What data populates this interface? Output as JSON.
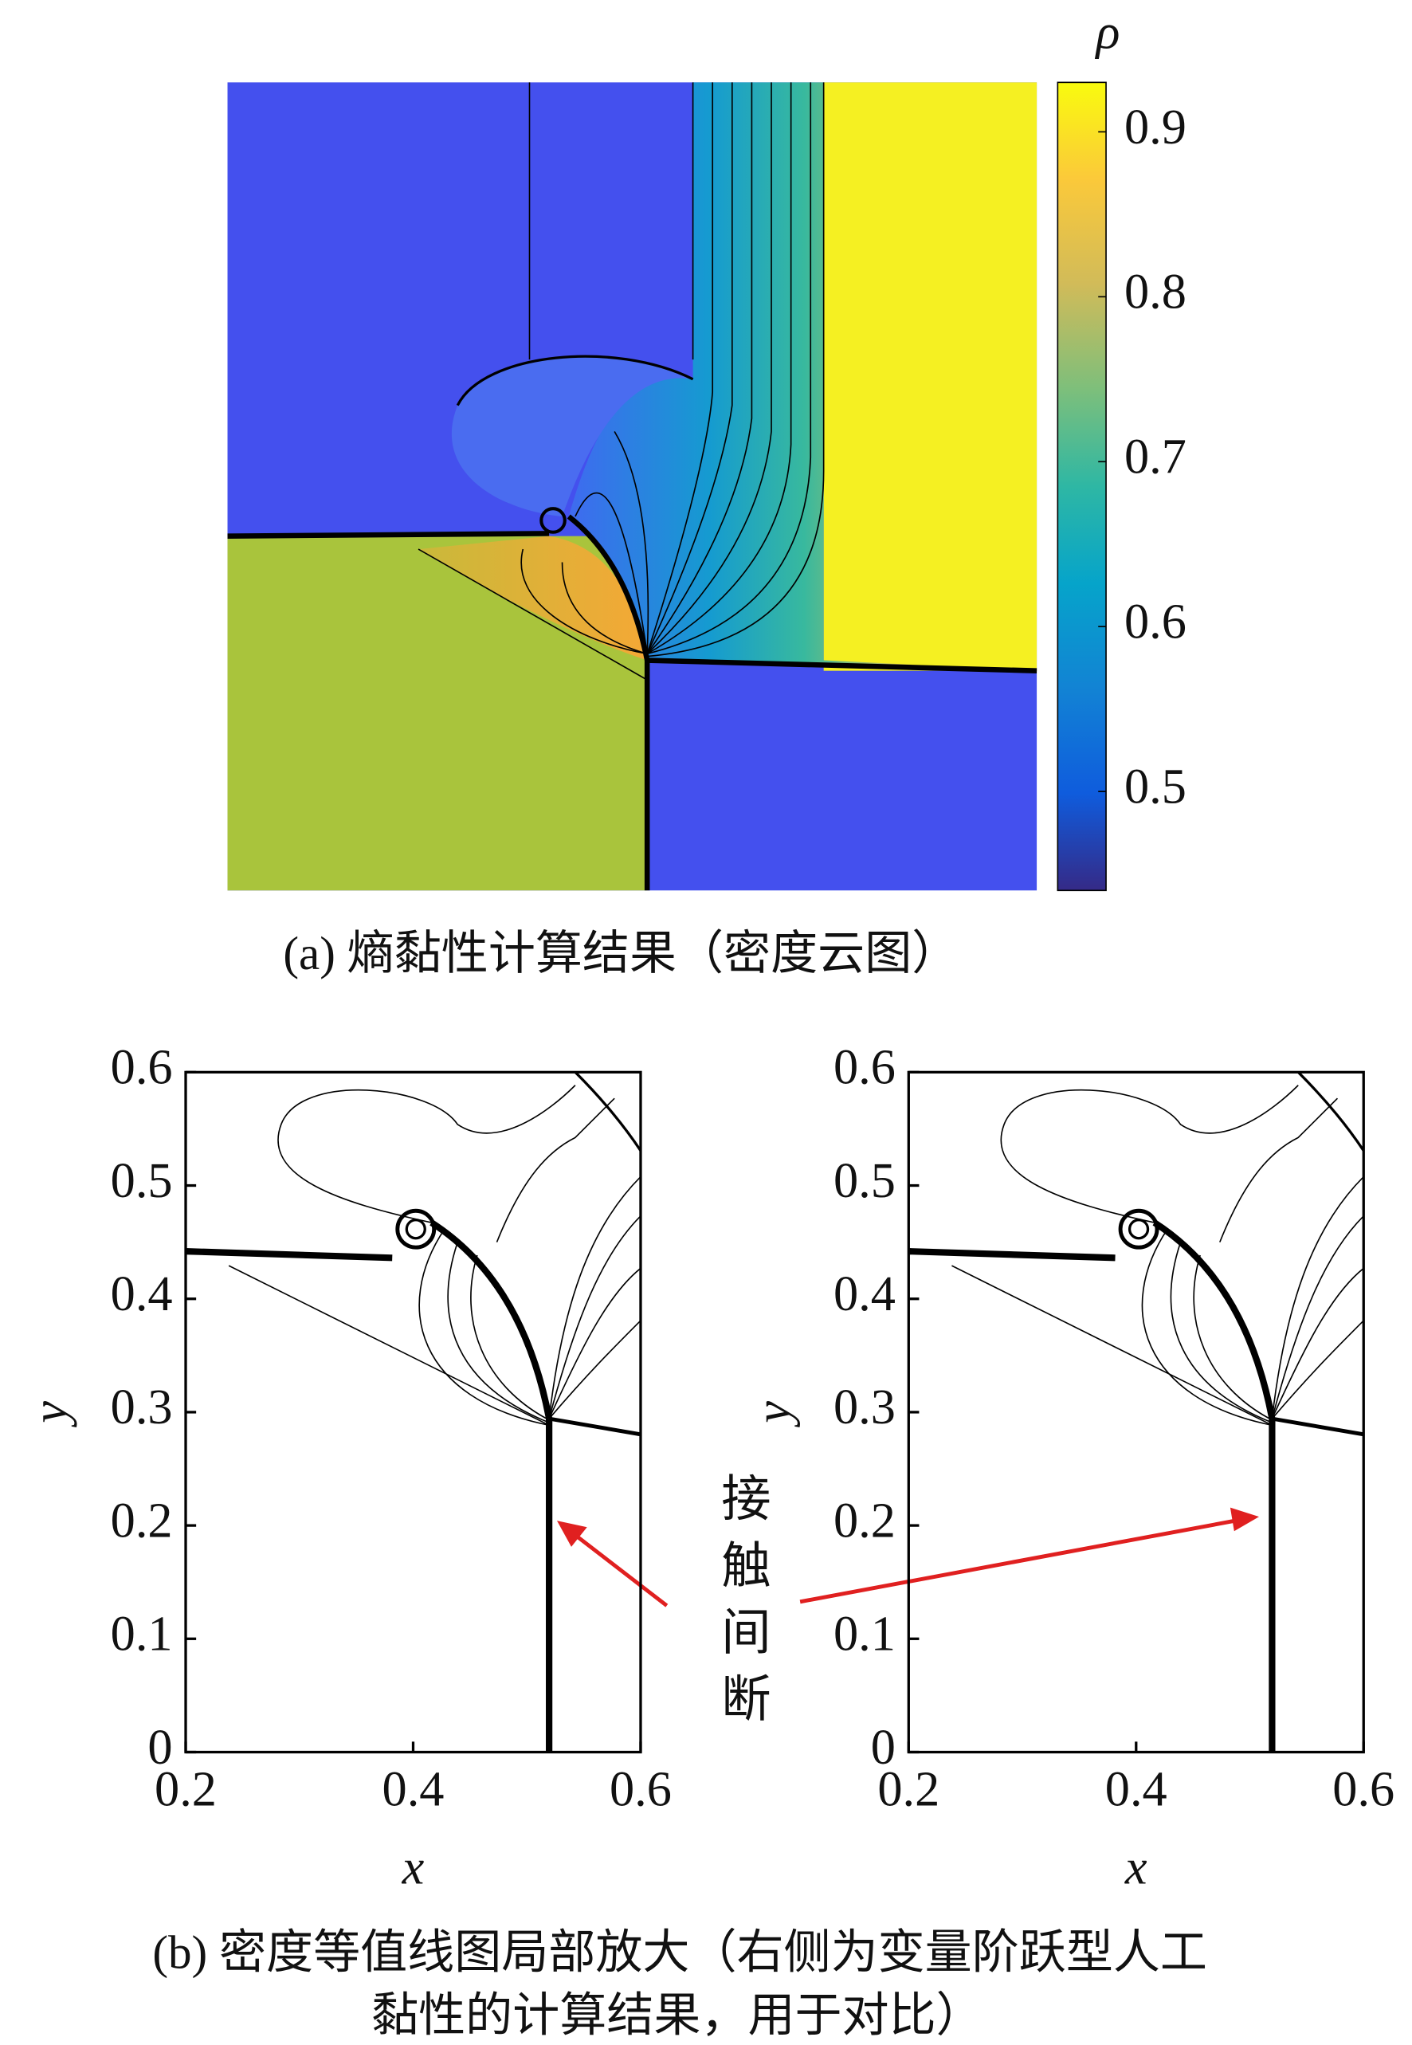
{
  "chart_data": [
    {
      "type": "contour",
      "colorbar": {
        "label": "ρ",
        "lim": [
          0.44,
          0.93
        ],
        "ticks": [
          0.5,
          0.6,
          0.7,
          0.8,
          0.9
        ]
      }
    },
    {
      "type": "contour-lines",
      "xlabel": "x",
      "ylabel": "y",
      "xlim": [
        0.2,
        0.6
      ],
      "ylim": [
        0,
        0.6
      ],
      "xticks": [
        0.2,
        0.4,
        0.6
      ],
      "yticks": [
        0,
        0.1,
        0.2,
        0.3,
        0.4,
        0.5,
        0.6
      ]
    },
    {
      "type": "contour-lines",
      "xlabel": "x",
      "ylabel": "y",
      "xlim": [
        0.2,
        0.6
      ],
      "ylim": [
        0,
        0.6
      ],
      "xticks": [
        0.2,
        0.4,
        0.6
      ],
      "yticks": [
        0,
        0.1,
        0.2,
        0.3,
        0.4,
        0.5,
        0.6
      ]
    }
  ],
  "captions": {
    "a": "(a) 熵黏性计算结果（密度云图）",
    "b": [
      "(b) 密度等值线图局部放大（右侧为变量阶跃型人工",
      "黏性的计算结果，用于对比）"
    ]
  },
  "annotation": "接触间断"
}
